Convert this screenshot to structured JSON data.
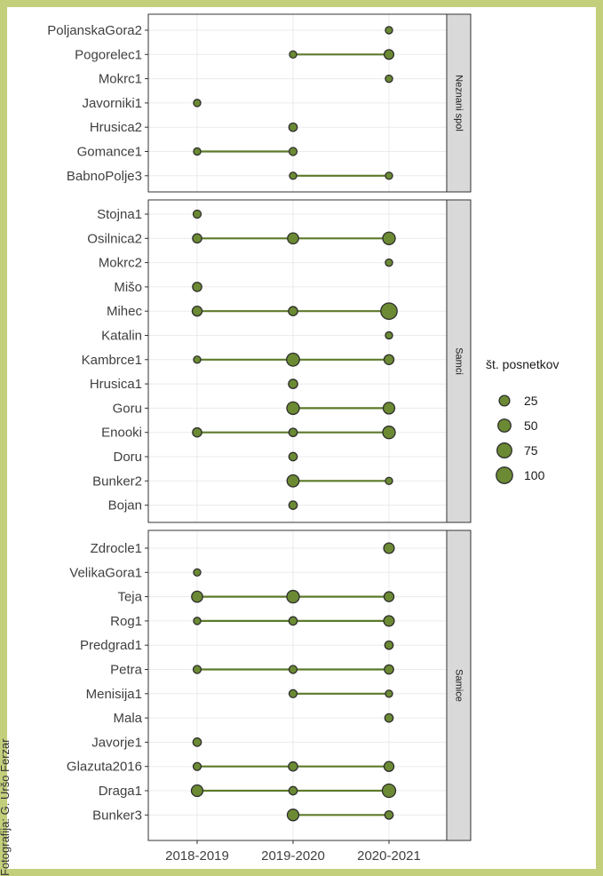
{
  "credit": "Fotografija: G. Uršo Ferzar",
  "colors": {
    "frame": "#c4cf7c",
    "point_fill": "#6b8a33",
    "point_stroke": "#2e2e2e",
    "line": "#5c7a2a",
    "grid": "#ebebeb",
    "strip_bg": "#d9d9d9",
    "panel_border": "#333333"
  },
  "chart_data": {
    "type": "scatter",
    "x_categories": [
      "2018-2019",
      "2019-2020",
      "2020-2021"
    ],
    "legend": {
      "title": "št. posnetkov",
      "sizes": [
        25,
        50,
        75,
        100
      ],
      "position": "right"
    },
    "facets": [
      {
        "label": "Neznani spol",
        "rows": [
          {
            "name": "PoljanskaGora2",
            "points": [
              {
                "x": "2020-2021",
                "n": 5
              }
            ]
          },
          {
            "name": "Pogorelec1",
            "points": [
              {
                "x": "2019-2020",
                "n": 5
              },
              {
                "x": "2020-2021",
                "n": 18
              }
            ]
          },
          {
            "name": "Mokrc1",
            "points": [
              {
                "x": "2020-2021",
                "n": 5
              }
            ]
          },
          {
            "name": "Javorniki1",
            "points": [
              {
                "x": "2018-2019",
                "n": 5
              }
            ]
          },
          {
            "name": "Hrusica2",
            "points": [
              {
                "x": "2019-2020",
                "n": 10
              }
            ]
          },
          {
            "name": "Gomance1",
            "points": [
              {
                "x": "2018-2019",
                "n": 5
              },
              {
                "x": "2019-2020",
                "n": 8
              }
            ]
          },
          {
            "name": "BabnoPolje3",
            "points": [
              {
                "x": "2019-2020",
                "n": 5
              },
              {
                "x": "2020-2021",
                "n": 5
              }
            ]
          }
        ]
      },
      {
        "label": "Samci",
        "rows": [
          {
            "name": "Stojna1",
            "points": [
              {
                "x": "2018-2019",
                "n": 8
              }
            ]
          },
          {
            "name": "Osilnica2",
            "points": [
              {
                "x": "2018-2019",
                "n": 15
              },
              {
                "x": "2019-2020",
                "n": 30
              },
              {
                "x": "2020-2021",
                "n": 45
              }
            ]
          },
          {
            "name": "Mokrc2",
            "points": [
              {
                "x": "2020-2021",
                "n": 5
              }
            ]
          },
          {
            "name": "Mišo",
            "points": [
              {
                "x": "2018-2019",
                "n": 15
              }
            ]
          },
          {
            "name": "Mihec",
            "points": [
              {
                "x": "2018-2019",
                "n": 20
              },
              {
                "x": "2019-2020",
                "n": 15
              },
              {
                "x": "2020-2021",
                "n": 100
              }
            ]
          },
          {
            "name": "Katalin",
            "points": [
              {
                "x": "2020-2021",
                "n": 5
              }
            ]
          },
          {
            "name": "Kambrce1",
            "points": [
              {
                "x": "2018-2019",
                "n": 5
              },
              {
                "x": "2019-2020",
                "n": 50
              },
              {
                "x": "2020-2021",
                "n": 20
              }
            ]
          },
          {
            "name": "Hrusica1",
            "points": [
              {
                "x": "2019-2020",
                "n": 15
              }
            ]
          },
          {
            "name": "Goru",
            "points": [
              {
                "x": "2019-2020",
                "n": 45
              },
              {
                "x": "2020-2021",
                "n": 35
              }
            ]
          },
          {
            "name": "Enooki",
            "points": [
              {
                "x": "2018-2019",
                "n": 15
              },
              {
                "x": "2019-2020",
                "n": 10
              },
              {
                "x": "2020-2021",
                "n": 45
              }
            ]
          },
          {
            "name": "Doru",
            "points": [
              {
                "x": "2019-2020",
                "n": 10
              }
            ]
          },
          {
            "name": "Bunker2",
            "points": [
              {
                "x": "2019-2020",
                "n": 40
              },
              {
                "x": "2020-2021",
                "n": 5
              }
            ]
          },
          {
            "name": "Bojan",
            "points": [
              {
                "x": "2019-2020",
                "n": 10
              }
            ]
          }
        ]
      },
      {
        "label": "Samice",
        "rows": [
          {
            "name": "Zdrocle1",
            "points": [
              {
                "x": "2020-2021",
                "n": 25
              }
            ]
          },
          {
            "name": "VelikaGora1",
            "points": [
              {
                "x": "2018-2019",
                "n": 5
              }
            ]
          },
          {
            "name": "Teja",
            "points": [
              {
                "x": "2018-2019",
                "n": 30
              },
              {
                "x": "2019-2020",
                "n": 45
              },
              {
                "x": "2020-2021",
                "n": 20
              }
            ]
          },
          {
            "name": "Rog1",
            "points": [
              {
                "x": "2018-2019",
                "n": 5
              },
              {
                "x": "2019-2020",
                "n": 10
              },
              {
                "x": "2020-2021",
                "n": 25
              }
            ]
          },
          {
            "name": "Predgrad1",
            "points": [
              {
                "x": "2020-2021",
                "n": 10
              }
            ]
          },
          {
            "name": "Petra",
            "points": [
              {
                "x": "2018-2019",
                "n": 8
              },
              {
                "x": "2019-2020",
                "n": 8
              },
              {
                "x": "2020-2021",
                "n": 15
              }
            ]
          },
          {
            "name": "Menisija1",
            "points": [
              {
                "x": "2019-2020",
                "n": 8
              },
              {
                "x": "2020-2021",
                "n": 5
              }
            ]
          },
          {
            "name": "Mala",
            "points": [
              {
                "x": "2020-2021",
                "n": 10
              }
            ]
          },
          {
            "name": "Javorje1",
            "points": [
              {
                "x": "2018-2019",
                "n": 10
              }
            ]
          },
          {
            "name": "Glazuta2016",
            "points": [
              {
                "x": "2018-2019",
                "n": 8
              },
              {
                "x": "2019-2020",
                "n": 15
              },
              {
                "x": "2020-2021",
                "n": 20
              }
            ]
          },
          {
            "name": "Draga1",
            "points": [
              {
                "x": "2018-2019",
                "n": 35
              },
              {
                "x": "2019-2020",
                "n": 10
              },
              {
                "x": "2020-2021",
                "n": 55
              }
            ]
          },
          {
            "name": "Bunker3",
            "points": [
              {
                "x": "2019-2020",
                "n": 35
              },
              {
                "x": "2020-2021",
                "n": 10
              }
            ]
          }
        ]
      }
    ]
  }
}
